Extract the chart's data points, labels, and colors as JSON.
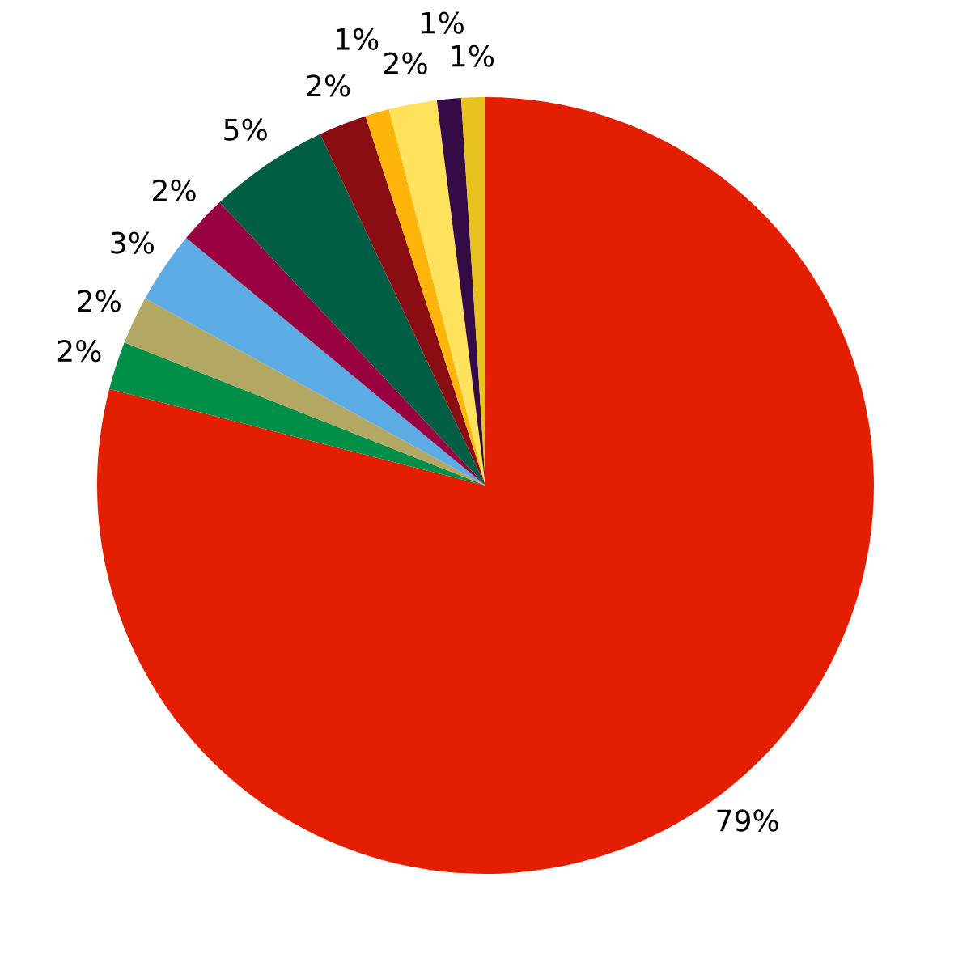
{
  "chart_data": {
    "type": "pie",
    "categories": [
      null,
      null,
      null,
      null,
      null,
      null,
      null,
      null,
      null,
      null,
      null
    ],
    "values": [
      79,
      2,
      2,
      3,
      2,
      5,
      2,
      1,
      2,
      1,
      1
    ],
    "colors": [
      "#e41e00",
      "#008f47",
      "#b2a763",
      "#5eace6",
      "#990040",
      "#005e45",
      "#8b0d14",
      "#ffb40a",
      "#ffe25c",
      "#350b46",
      "#e8c21e"
    ],
    "value_labels": [
      "79%",
      "2%",
      "2%",
      "3%",
      "2%",
      "5%",
      "2%",
      "1%",
      "2%",
      "1%",
      "1%"
    ]
  }
}
